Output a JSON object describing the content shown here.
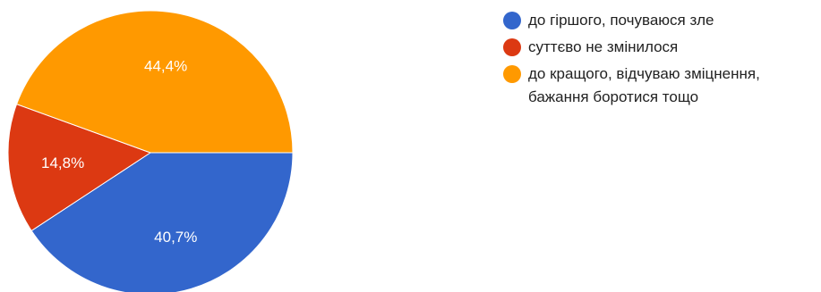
{
  "chart_data": {
    "type": "pie",
    "slices": [
      {
        "label": "до гіршого, почуваюся зле",
        "value": 40.7,
        "value_label": "40,7%",
        "color": "#3366cc"
      },
      {
        "label": "суттєво не змінилося",
        "value": 14.8,
        "value_label": "14,8%",
        "color": "#dc3912"
      },
      {
        "label": "до кращого, відчуваю зміцнення, бажання боротися тощо",
        "value": 44.4,
        "value_label": "44,4%",
        "color": "#ff9900"
      }
    ],
    "legend_position": "right"
  },
  "legend": {
    "items": [
      {
        "label": "до гіршого, почуваюся зле",
        "color": "#3366cc"
      },
      {
        "label": "суттєво не змінилося",
        "color": "#dc3912"
      },
      {
        "label": "до кращого, відчуваю зміцнення, бажання боротися тощо",
        "color": "#ff9900"
      }
    ]
  }
}
